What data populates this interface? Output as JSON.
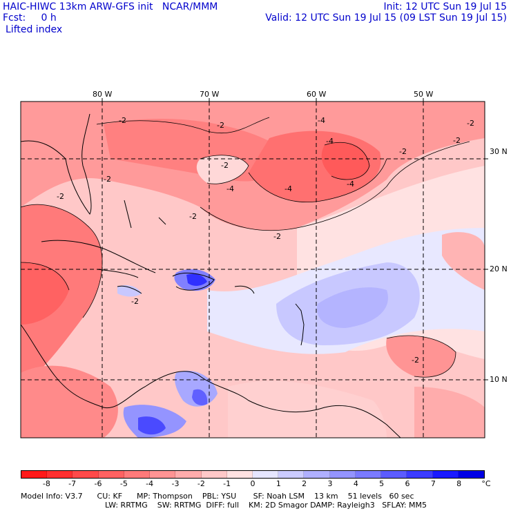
{
  "header": {
    "title": "HAIC-HIWC 13km ARW-GFS init   NCAR/MMM",
    "init": "Init: 12 UTC Sun 19 Jul 15",
    "fcst": "Fcst:     0 h",
    "valid": "Valid: 12 UTC Sun 19 Jul 15 (09 LST Sun 19 Jul 15)",
    "field": "Lifted index"
  },
  "map": {
    "lon_labels": [
      "80 W",
      "70 W",
      "60 W",
      "50 W"
    ],
    "lat_labels": [
      "30 N",
      "20 N",
      "10 N"
    ],
    "contour_label": "-2",
    "contour_label_4": "-4"
  },
  "colorbar": {
    "unit": "°C",
    "ticks": [
      "-8",
      "-7",
      "-6",
      "-5",
      "-4",
      "-3",
      "-2",
      "-1",
      "0",
      "1",
      "2",
      "3",
      "4",
      "5",
      "6",
      "7",
      "8"
    ],
    "colors": [
      "#ff1a1a",
      "#ff3030",
      "#ff4a4a",
      "#ff6262",
      "#ff7a7a",
      "#ff9494",
      "#ffacac",
      "#ffc8c8",
      "#ffe2e2",
      "#e6e6ff",
      "#ccccff",
      "#b0b0ff",
      "#9494ff",
      "#7a7aff",
      "#5c5cff",
      "#3c3cff",
      "#1a1aff",
      "#0000e6"
    ]
  },
  "model_info": {
    "line1": "Model Info: V3.7      CU: KF      MP: Thompson    PBL: YSU       SF: Noah LSM    13 km    51 levels   60 sec",
    "line2": "LW: RRTMG    SW: RRTMG  DIFF: full    KM: 2D Smagor DAMP: Rayleigh3   SFLAY: MM5"
  }
}
